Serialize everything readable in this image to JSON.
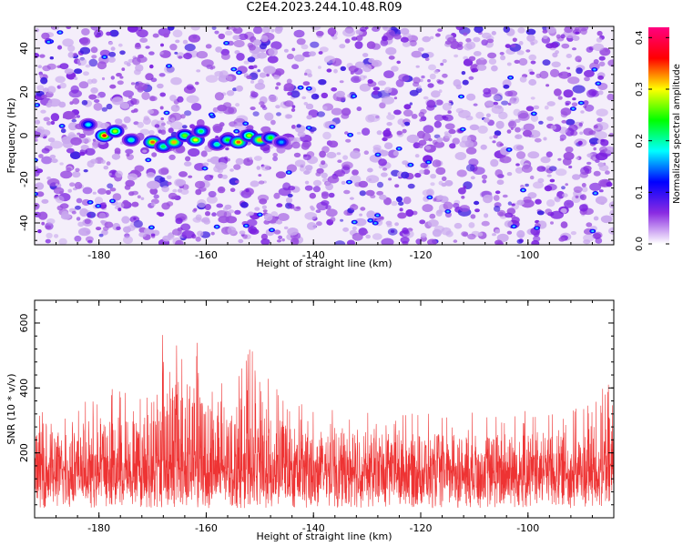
{
  "title": "C2E4.2023.244.10.48.R09",
  "chart_data": [
    {
      "type": "heatmap",
      "title": "C2E4.2023.244.10.48.R09",
      "xlabel": "Height of straight line (km)",
      "ylabel": "Frequency (Hz)",
      "xlim": [
        -192,
        -84
      ],
      "ylim": [
        -50,
        50
      ],
      "xticks": [
        -180,
        -160,
        -140,
        -120,
        -100
      ],
      "yticks": [
        -40,
        -20,
        0,
        20,
        40
      ],
      "colorbar": {
        "label": "Normalized spectral amplitude",
        "range": [
          0,
          0.42
        ],
        "ticks": [
          0.0,
          0.1,
          0.2,
          0.3,
          0.4
        ],
        "colors": [
          "#ffffff",
          "#8a2be2",
          "#0000ff",
          "#00ffff",
          "#00ff00",
          "#ffff00",
          "#ff0000",
          "#ff0080"
        ]
      },
      "hotspots": [
        {
          "x": -179,
          "y": 0,
          "value": 0.36
        },
        {
          "x": -177,
          "y": 2,
          "value": 0.28
        },
        {
          "x": -182,
          "y": 5,
          "value": 0.18
        },
        {
          "x": -174,
          "y": -2,
          "value": 0.2
        },
        {
          "x": -170,
          "y": -3,
          "value": 0.34
        },
        {
          "x": -168,
          "y": -5,
          "value": 0.22
        },
        {
          "x": -166,
          "y": -3,
          "value": 0.32
        },
        {
          "x": -164,
          "y": 0,
          "value": 0.26
        },
        {
          "x": -162,
          "y": -2,
          "value": 0.3
        },
        {
          "x": -161,
          "y": 2,
          "value": 0.22
        },
        {
          "x": -158,
          "y": -4,
          "value": 0.2
        },
        {
          "x": -156,
          "y": -2,
          "value": 0.24
        },
        {
          "x": -154,
          "y": -3,
          "value": 0.34
        },
        {
          "x": -152,
          "y": 0,
          "value": 0.28
        },
        {
          "x": -150,
          "y": -2,
          "value": 0.32
        },
        {
          "x": -148,
          "y": -1,
          "value": 0.24
        },
        {
          "x": -146,
          "y": -3,
          "value": 0.16
        }
      ]
    },
    {
      "type": "line",
      "xlabel": "Height of straight line (km)",
      "ylabel": "SNR (10 * v/v)",
      "xlim": [
        -192,
        -84
      ],
      "ylim": [
        0,
        670
      ],
      "xticks": [
        -180,
        -160,
        -140,
        -120,
        -100
      ],
      "yticks": [
        200,
        400,
        600
      ],
      "color": "#ee3333",
      "envelope": [
        {
          "x": -192,
          "y": 330
        },
        {
          "x": -186,
          "y": 340
        },
        {
          "x": -180,
          "y": 360
        },
        {
          "x": -176,
          "y": 420
        },
        {
          "x": -172,
          "y": 380
        },
        {
          "x": -169,
          "y": 600
        },
        {
          "x": -168,
          "y": 670
        },
        {
          "x": -166,
          "y": 560
        },
        {
          "x": -164,
          "y": 620
        },
        {
          "x": -162,
          "y": 540
        },
        {
          "x": -158,
          "y": 430
        },
        {
          "x": -156,
          "y": 390
        },
        {
          "x": -154,
          "y": 460
        },
        {
          "x": -152,
          "y": 520
        },
        {
          "x": -150,
          "y": 480
        },
        {
          "x": -147,
          "y": 400
        },
        {
          "x": -140,
          "y": 330
        },
        {
          "x": -130,
          "y": 320
        },
        {
          "x": -120,
          "y": 320
        },
        {
          "x": -110,
          "y": 320
        },
        {
          "x": -100,
          "y": 330
        },
        {
          "x": -90,
          "y": 330
        },
        {
          "x": -85,
          "y": 410
        }
      ]
    }
  ]
}
